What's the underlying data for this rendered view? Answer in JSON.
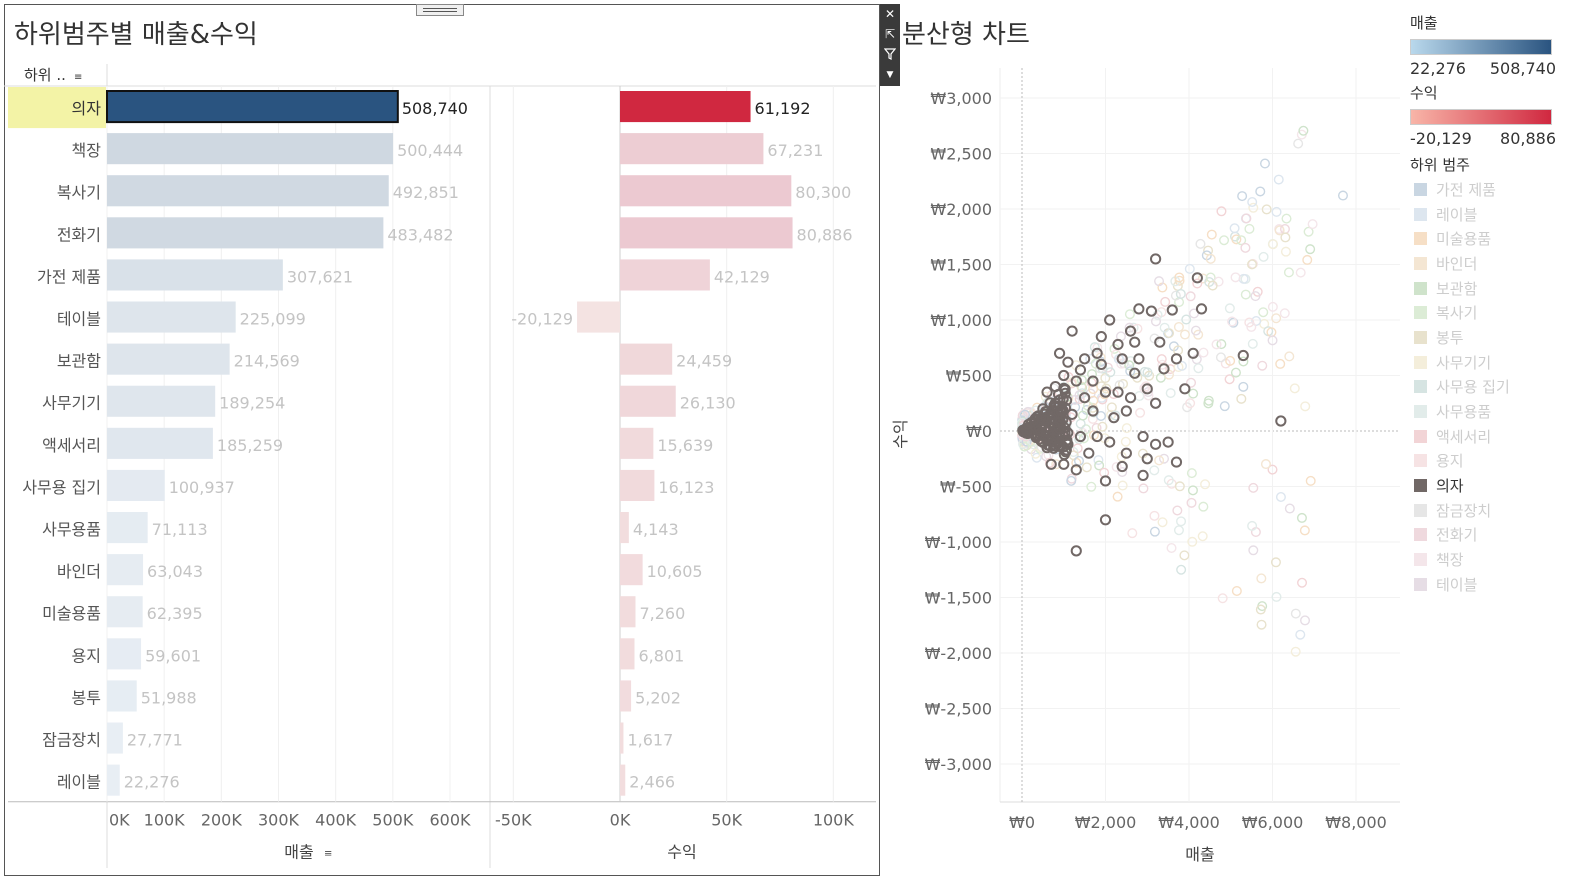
{
  "left_title": "하위범주별 매출&수익",
  "right_title": "분산형 차트",
  "colors": {
    "sales_highlight": "#2a5480",
    "sales_dim": [
      "#cfd8e1",
      "#dfe6ee",
      "#e8eef4"
    ],
    "profit_highlight": "#d02840",
    "profit_dim": [
      "#ecc9d1",
      "#f2d6d8",
      "#f4e3e2"
    ],
    "row_highlight": "#f3f3a6",
    "scatter_highlight": "#716866"
  },
  "chart_data": [
    {
      "type": "bar",
      "title": "하위범주별 매출&수익",
      "row_header": "하위 ..",
      "categories": [
        "의자",
        "책장",
        "복사기",
        "전화기",
        "가전 제품",
        "테이블",
        "보관함",
        "사무기기",
        "액세서리",
        "사무용 집기",
        "사무용품",
        "바인더",
        "미술용품",
        "용지",
        "봉투",
        "잠금장치",
        "레이블"
      ],
      "highlighted": "의자",
      "sales": {
        "xlabel": "매출",
        "values": [
          508740,
          500444,
          492851,
          483482,
          307621,
          225099,
          214569,
          189254,
          185259,
          100937,
          71113,
          63043,
          62395,
          59601,
          51988,
          27771,
          22276
        ],
        "labels": [
          "508,740",
          "500,444",
          "492,851",
          "483,482",
          "307,621",
          "225,099",
          "214,569",
          "189,254",
          "185,259",
          "100,937",
          "71,113",
          "63,043",
          "62,395",
          "59,601",
          "51,988",
          "27,771",
          "22,276"
        ],
        "xlim": [
          0,
          670000
        ],
        "ticks": [
          0,
          100000,
          200000,
          300000,
          400000,
          500000,
          600000
        ],
        "tick_labels": [
          "0K",
          "100K",
          "200K",
          "300K",
          "400K",
          "500K",
          "600K"
        ]
      },
      "profit": {
        "xlabel": "수익",
        "values": [
          61192,
          67231,
          80300,
          80886,
          42129,
          -20129,
          24459,
          26130,
          15639,
          16123,
          4143,
          10605,
          7260,
          6801,
          5202,
          1617,
          2466
        ],
        "labels": [
          "61,192",
          "67,231",
          "80,300",
          "80,886",
          "42,129",
          "-20,129",
          "24,459",
          "26,130",
          "15,639",
          "16,123",
          "4,143",
          "10,605",
          "7,260",
          "6,801",
          "5,202",
          "1,617",
          "2,466"
        ],
        "xlim": [
          -60000,
          120000
        ],
        "ticks": [
          -50000,
          0,
          50000,
          100000
        ],
        "tick_labels": [
          "-50K",
          "0K",
          "50K",
          "100K"
        ]
      }
    },
    {
      "type": "scatter",
      "title": "분산형 차트",
      "xlabel": "매출",
      "ylabel": "수익",
      "xlim": [
        -500,
        9000
      ],
      "ylim": [
        -3300,
        3300
      ],
      "xticks": [
        0,
        2000,
        4000,
        6000,
        8000
      ],
      "xtick_labels": [
        "₩0",
        "₩2,000",
        "₩4,000",
        "₩6,000",
        "₩8,000"
      ],
      "yticks": [
        3000,
        2500,
        2000,
        1500,
        1000,
        500,
        0,
        -500,
        -1000,
        -1500,
        -2000,
        -2500,
        -3000
      ],
      "ytick_labels": [
        "₩3,000",
        "₩2,500",
        "₩2,000",
        "₩1,500",
        "₩1,000",
        "₩500",
        "₩0",
        "₩-500",
        "₩-1,000",
        "₩-1,500",
        "₩-2,000",
        "₩-2,500",
        "₩-3,000"
      ],
      "highlighted_series": "의자",
      "highlight_points": [
        [
          4200,
          1380
        ],
        [
          3200,
          1550
        ],
        [
          3100,
          1080
        ],
        [
          3600,
          1090
        ],
        [
          4100,
          700
        ],
        [
          5300,
          680
        ],
        [
          6200,
          90
        ],
        [
          3700,
          -280
        ],
        [
          3200,
          -120
        ],
        [
          2000,
          -450
        ],
        [
          2000,
          -800
        ],
        [
          1300,
          -1080
        ],
        [
          2800,
          1100
        ],
        [
          2600,
          900
        ],
        [
          2300,
          780
        ],
        [
          3000,
          380
        ],
        [
          2700,
          520
        ],
        [
          2500,
          180
        ],
        [
          1900,
          600
        ],
        [
          1700,
          450
        ],
        [
          1500,
          300
        ],
        [
          1200,
          150
        ],
        [
          900,
          700
        ],
        [
          1100,
          620
        ],
        [
          2100,
          1000
        ],
        [
          2400,
          650
        ],
        [
          3400,
          560
        ],
        [
          3900,
          380
        ],
        [
          2900,
          -50
        ],
        [
          1600,
          -200
        ],
        [
          1300,
          -350
        ],
        [
          700,
          -300
        ],
        [
          1000,
          -300
        ],
        [
          600,
          -150
        ],
        [
          1800,
          -50
        ],
        [
          2200,
          120
        ],
        [
          800,
          400
        ],
        [
          1400,
          550
        ],
        [
          2600,
          300
        ],
        [
          3300,
          800
        ],
        [
          3500,
          -100
        ],
        [
          2900,
          -400
        ],
        [
          2400,
          -320
        ],
        [
          1100,
          -120
        ],
        [
          500,
          200
        ],
        [
          1200,
          900
        ],
        [
          2800,
          650
        ],
        [
          1900,
          850
        ],
        [
          3000,
          -250
        ],
        [
          4300,
          1100
        ],
        [
          3700,
          650
        ],
        [
          2300,
          350
        ],
        [
          1700,
          180
        ],
        [
          1000,
          500
        ],
        [
          1500,
          650
        ],
        [
          2000,
          350
        ],
        [
          2700,
          800
        ],
        [
          3200,
          250
        ],
        [
          900,
          -100
        ],
        [
          1400,
          -50
        ],
        [
          600,
          350
        ],
        [
          2500,
          -200
        ],
        [
          1800,
          700
        ],
        [
          2100,
          -100
        ],
        [
          1300,
          450
        ],
        [
          800,
          250
        ]
      ],
      "point_labels": [],
      "legend": {
        "sales_title": "매출",
        "sales_min": "22,276",
        "sales_max": "508,740",
        "profit_title": "수익",
        "profit_min": "-20,129",
        "profit_max": "80,886",
        "category_title": "하위 범주",
        "categories": [
          {
            "label": "가전 제품",
            "color": "#c9d6e2"
          },
          {
            "label": "레이블",
            "color": "#dde6ef"
          },
          {
            "label": "미술용품",
            "color": "#f6dfc6"
          },
          {
            "label": "바인더",
            "color": "#f4e6d3"
          },
          {
            "label": "보관함",
            "color": "#cfe3cb"
          },
          {
            "label": "복사기",
            "color": "#dcecd6"
          },
          {
            "label": "봉투",
            "color": "#e8e2cd"
          },
          {
            "label": "사무기기",
            "color": "#f4eedb"
          },
          {
            "label": "사무용 집기",
            "color": "#d6e4e2"
          },
          {
            "label": "사무용품",
            "color": "#e2ecea"
          },
          {
            "label": "액세서리",
            "color": "#f2d4d6"
          },
          {
            "label": "용지",
            "color": "#f6e3e4"
          },
          {
            "label": "의자",
            "color": "#716866"
          },
          {
            "label": "잠금장치",
            "color": "#e6e6e6"
          },
          {
            "label": "전화기",
            "color": "#efd9de"
          },
          {
            "label": "책장",
            "color": "#f4e6ea"
          },
          {
            "label": "테이블",
            "color": "#e6dde5"
          }
        ]
      }
    }
  ]
}
